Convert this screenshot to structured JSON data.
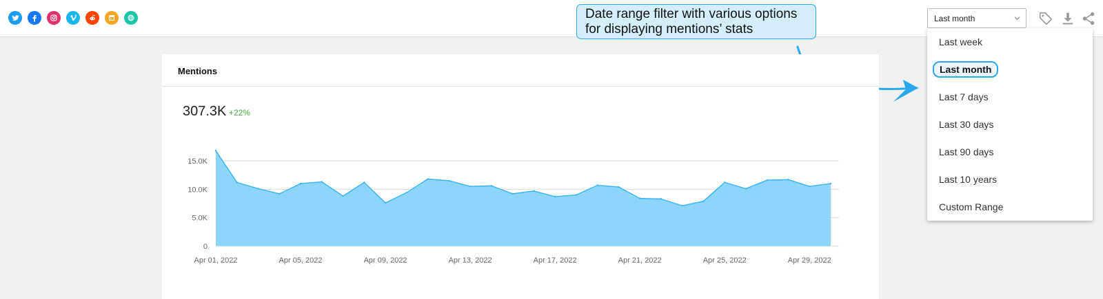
{
  "social_icons": [
    {
      "name": "twitter-icon",
      "color": "#1d9bf0"
    },
    {
      "name": "facebook-icon",
      "color": "#1877f2"
    },
    {
      "name": "instagram-icon",
      "color": "#e1306c"
    },
    {
      "name": "vimeo-icon",
      "color": "#1ab7ea"
    },
    {
      "name": "reddit-icon",
      "color": "#ff4500"
    },
    {
      "name": "news-icon",
      "color": "#f5a623"
    },
    {
      "name": "web-icon",
      "color": "#1cc6a6"
    }
  ],
  "date_filter": {
    "selected": "Last month",
    "options": [
      "Last week",
      "Last month",
      "Last 7 days",
      "Last 30 days",
      "Last 90 days",
      "Last 10 years",
      "Custom Range"
    ]
  },
  "toolbar_icons": [
    "tag-icon",
    "download-icon",
    "share-icon"
  ],
  "callout": {
    "line1": "Date range filter with various options",
    "line2": "for displaying mentions’ stats"
  },
  "card": {
    "title": "Mentions",
    "total": "307.3K",
    "change": "+22%"
  },
  "chart_data": {
    "type": "area",
    "x": [
      "Apr 01, 2022",
      "Apr 02, 2022",
      "Apr 03, 2022",
      "Apr 04, 2022",
      "Apr 05, 2022",
      "Apr 06, 2022",
      "Apr 07, 2022",
      "Apr 08, 2022",
      "Apr 09, 2022",
      "Apr 10, 2022",
      "Apr 11, 2022",
      "Apr 12, 2022",
      "Apr 13, 2022",
      "Apr 14, 2022",
      "Apr 15, 2022",
      "Apr 16, 2022",
      "Apr 17, 2022",
      "Apr 18, 2022",
      "Apr 19, 2022",
      "Apr 20, 2022",
      "Apr 21, 2022",
      "Apr 22, 2022",
      "Apr 23, 2022",
      "Apr 24, 2022",
      "Apr 25, 2022",
      "Apr 26, 2022",
      "Apr 27, 2022",
      "Apr 28, 2022",
      "Apr 29, 2022",
      "Apr 30, 2022"
    ],
    "values": [
      16800,
      11200,
      10100,
      9200,
      11000,
      11300,
      8800,
      11200,
      7600,
      9400,
      11800,
      11500,
      10500,
      10600,
      9200,
      9700,
      8700,
      9000,
      10700,
      10400,
      8400,
      8300,
      7100,
      7900,
      11200,
      10100,
      11600,
      11700,
      10500,
      11000
    ],
    "x_tick_labels": [
      "Apr 01, 2022",
      "Apr 05, 2022",
      "Apr 09, 2022",
      "Apr 13, 2022",
      "Apr 17, 2022",
      "Apr 21, 2022",
      "Apr 25, 2022",
      "Apr 29, 2022"
    ],
    "y_tick_labels": [
      "0",
      "5.0K",
      "10.0K",
      "15.0K"
    ],
    "y_ticks": [
      0,
      5000,
      10000,
      15000
    ],
    "ylim": [
      0,
      15000
    ],
    "grid": true,
    "fill_color": "#8dd5fb",
    "line_color": "#35b3f3"
  }
}
